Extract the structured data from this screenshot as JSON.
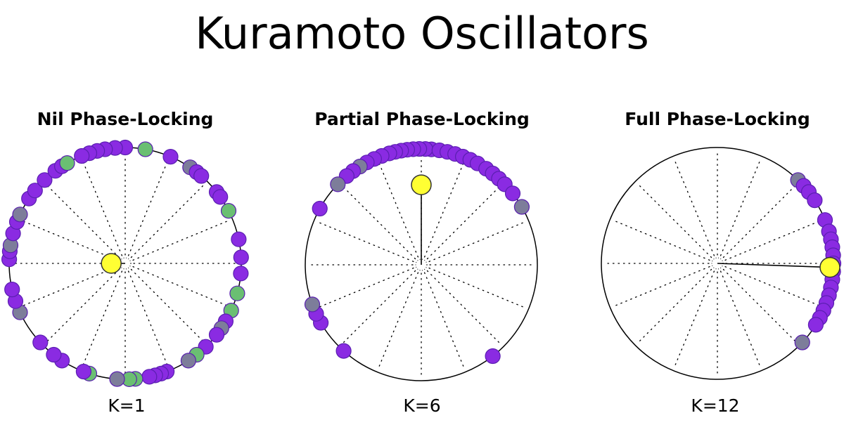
{
  "title": "Kuramoto Oscillators",
  "colors": {
    "oscillator_purple": "#8a2be2",
    "oscillator_purple_edge": "#5a1fb0",
    "oscillator_green": "#6abf72",
    "oscillator_gray": "#7d7d9a",
    "mean_field": "#ffff33",
    "circle_stroke": "#000000"
  },
  "panels": [
    {
      "title": "Nil Phase-Locking",
      "k_label": "K=1",
      "coupling_K": 1,
      "order_parameter": {
        "r": 0.12,
        "angle_deg": 180
      },
      "oscillators": [
        {
          "angle_deg": 90,
          "color": "purple"
        },
        {
          "angle_deg": 95,
          "color": "purple"
        },
        {
          "angle_deg": 100,
          "color": "purple"
        },
        {
          "angle_deg": 104,
          "color": "purple"
        },
        {
          "angle_deg": 108,
          "color": "purple"
        },
        {
          "angle_deg": 112,
          "color": "purple"
        },
        {
          "angle_deg": 80,
          "color": "green"
        },
        {
          "angle_deg": 67,
          "color": "purple"
        },
        {
          "angle_deg": 56,
          "color": "gray"
        },
        {
          "angle_deg": 52,
          "color": "purple"
        },
        {
          "angle_deg": 49,
          "color": "purple"
        },
        {
          "angle_deg": 38,
          "color": "purple"
        },
        {
          "angle_deg": 35,
          "color": "purple"
        },
        {
          "angle_deg": 27,
          "color": "green"
        },
        {
          "angle_deg": 12,
          "color": "purple"
        },
        {
          "angle_deg": 3,
          "color": "purple"
        },
        {
          "angle_deg": -5,
          "color": "purple"
        },
        {
          "angle_deg": -15,
          "color": "green"
        },
        {
          "angle_deg": -24,
          "color": "green"
        },
        {
          "angle_deg": -30,
          "color": "purple"
        },
        {
          "angle_deg": -34,
          "color": "gray"
        },
        {
          "angle_deg": -38,
          "color": "purple"
        },
        {
          "angle_deg": -46,
          "color": "purple"
        },
        {
          "angle_deg": -52,
          "color": "green"
        },
        {
          "angle_deg": -57,
          "color": "gray"
        },
        {
          "angle_deg": -69,
          "color": "purple"
        },
        {
          "angle_deg": -72,
          "color": "purple"
        },
        {
          "angle_deg": -75,
          "color": "purple"
        },
        {
          "angle_deg": -78,
          "color": "purple"
        },
        {
          "angle_deg": -85,
          "color": "green"
        },
        {
          "angle_deg": -88,
          "color": "green"
        },
        {
          "angle_deg": -94,
          "color": "gray"
        },
        {
          "angle_deg": -108,
          "color": "green"
        },
        {
          "angle_deg": -111,
          "color": "purple"
        },
        {
          "angle_deg": -123,
          "color": "purple"
        },
        {
          "angle_deg": -128,
          "color": "purple"
        },
        {
          "angle_deg": -137,
          "color": "purple"
        },
        {
          "angle_deg": -155,
          "color": "gray"
        },
        {
          "angle_deg": -161,
          "color": "purple"
        },
        {
          "angle_deg": -167,
          "color": "purple"
        },
        {
          "angle_deg": 178,
          "color": "purple"
        },
        {
          "angle_deg": 174,
          "color": "purple"
        },
        {
          "angle_deg": 171,
          "color": "gray"
        },
        {
          "angle_deg": 165,
          "color": "purple"
        },
        {
          "angle_deg": 159,
          "color": "purple"
        },
        {
          "angle_deg": 155,
          "color": "gray"
        },
        {
          "angle_deg": 146,
          "color": "purple"
        },
        {
          "angle_deg": 141,
          "color": "purple"
        },
        {
          "angle_deg": 134,
          "color": "purple"
        },
        {
          "angle_deg": 127,
          "color": "purple"
        },
        {
          "angle_deg": 123,
          "color": "purple"
        },
        {
          "angle_deg": 120,
          "color": "green"
        }
      ]
    },
    {
      "title": "Partial Phase-Locking",
      "k_label": "K=6",
      "coupling_K": 6,
      "order_parameter": {
        "r": 0.69,
        "angle_deg": 90
      },
      "oscillators": [
        {
          "angle_deg": 85,
          "color": "purple"
        },
        {
          "angle_deg": 88,
          "color": "purple"
        },
        {
          "angle_deg": 91,
          "color": "purple"
        },
        {
          "angle_deg": 94,
          "color": "purple"
        },
        {
          "angle_deg": 97,
          "color": "purple"
        },
        {
          "angle_deg": 100,
          "color": "purple"
        },
        {
          "angle_deg": 103,
          "color": "purple"
        },
        {
          "angle_deg": 106,
          "color": "purple"
        },
        {
          "angle_deg": 110,
          "color": "purple"
        },
        {
          "angle_deg": 114,
          "color": "purple"
        },
        {
          "angle_deg": 118,
          "color": "purple"
        },
        {
          "angle_deg": 122,
          "color": "gray"
        },
        {
          "angle_deg": 126,
          "color": "purple"
        },
        {
          "angle_deg": 130,
          "color": "purple"
        },
        {
          "angle_deg": 136,
          "color": "gray"
        },
        {
          "angle_deg": 81,
          "color": "purple"
        },
        {
          "angle_deg": 77,
          "color": "purple"
        },
        {
          "angle_deg": 73,
          "color": "purple"
        },
        {
          "angle_deg": 69,
          "color": "purple"
        },
        {
          "angle_deg": 65,
          "color": "purple"
        },
        {
          "angle_deg": 61,
          "color": "purple"
        },
        {
          "angle_deg": 56,
          "color": "purple"
        },
        {
          "angle_deg": 52,
          "color": "purple"
        },
        {
          "angle_deg": 48,
          "color": "purple"
        },
        {
          "angle_deg": 44,
          "color": "purple"
        },
        {
          "angle_deg": 38,
          "color": "purple"
        },
        {
          "angle_deg": 30,
          "color": "gray"
        },
        {
          "angle_deg": 151,
          "color": "purple"
        },
        {
          "angle_deg": -150,
          "color": "purple"
        },
        {
          "angle_deg": -155,
          "color": "purple"
        },
        {
          "angle_deg": -160,
          "color": "gray"
        },
        {
          "angle_deg": -132,
          "color": "purple"
        },
        {
          "angle_deg": -52,
          "color": "purple"
        }
      ]
    },
    {
      "title": "Full Phase-Locking",
      "k_label": "K=12",
      "coupling_K": 12,
      "order_parameter": {
        "r": 0.97,
        "angle_deg": -2
      },
      "oscillators": [
        {
          "angle_deg": 46,
          "color": "gray"
        },
        {
          "angle_deg": 42,
          "color": "purple"
        },
        {
          "angle_deg": 38,
          "color": "purple"
        },
        {
          "angle_deg": 33,
          "color": "purple"
        },
        {
          "angle_deg": 22,
          "color": "purple"
        },
        {
          "angle_deg": 16,
          "color": "purple"
        },
        {
          "angle_deg": 12,
          "color": "purple"
        },
        {
          "angle_deg": 8,
          "color": "purple"
        },
        {
          "angle_deg": 4,
          "color": "purple"
        },
        {
          "angle_deg": 0,
          "color": "purple"
        },
        {
          "angle_deg": -4,
          "color": "purple"
        },
        {
          "angle_deg": -8,
          "color": "purple"
        },
        {
          "angle_deg": -12,
          "color": "purple"
        },
        {
          "angle_deg": -16,
          "color": "purple"
        },
        {
          "angle_deg": -20,
          "color": "purple"
        },
        {
          "angle_deg": -24,
          "color": "purple"
        },
        {
          "angle_deg": -28,
          "color": "purple"
        },
        {
          "angle_deg": -32,
          "color": "purple"
        },
        {
          "angle_deg": -43,
          "color": "gray"
        }
      ]
    }
  ]
}
